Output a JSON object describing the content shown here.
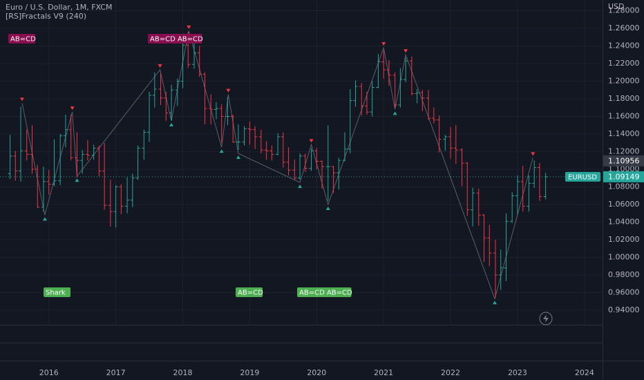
{
  "chart_data": {
    "type": "ohlc",
    "title": "Euro / U.S. Dollar, 1M, FXCM",
    "subtitle": "[RS]Fractals V9 (240)",
    "currency": "USD",
    "symbol": "EURUSD",
    "highlight_price": {
      "value": 1.10956,
      "label": "1.10956"
    },
    "up_color": "#26a69a",
    "down_color": "#f23645",
    "grid": true,
    "xlim": [
      2015.27,
      2024.27
    ],
    "xticks": [
      2016,
      2017,
      2018,
      2019,
      2020,
      2021,
      2022,
      2023,
      2024
    ],
    "ylim": [
      0.9235,
      1.2922
    ],
    "yticks": [
      {
        "value": 0.94,
        "label": "0.94000"
      },
      {
        "value": 0.96,
        "label": "0.96000"
      },
      {
        "value": 0.98,
        "label": "0.98000"
      },
      {
        "value": 1.0,
        "label": "1.00000"
      },
      {
        "value": 1.02,
        "label": "1.02000"
      },
      {
        "value": 1.04,
        "label": "1.04000"
      },
      {
        "value": 1.06,
        "label": "1.06000"
      },
      {
        "value": 1.08,
        "label": "1.08000"
      },
      {
        "value": 1.1,
        "label": "1.10000"
      },
      {
        "value": 1.12,
        "label": "1.12000"
      },
      {
        "value": 1.14,
        "label": "1.14000"
      },
      {
        "value": 1.16,
        "label": "1.16000"
      },
      {
        "value": 1.18,
        "label": "1.18000"
      },
      {
        "value": 1.2,
        "label": "1.20000"
      },
      {
        "value": 1.22,
        "label": "1.22000"
      },
      {
        "value": 1.24,
        "label": "1.24000"
      },
      {
        "value": 1.26,
        "label": "1.26000"
      },
      {
        "value": 1.28,
        "label": "1.28000"
      }
    ],
    "x": [
      2015.42,
      2015.5,
      2015.58,
      2015.67,
      2015.75,
      2015.83,
      2015.92,
      2016.0,
      2016.08,
      2016.17,
      2016.25,
      2016.33,
      2016.42,
      2016.5,
      2016.58,
      2016.67,
      2016.75,
      2016.83,
      2016.92,
      2017.0,
      2017.08,
      2017.17,
      2017.25,
      2017.33,
      2017.42,
      2017.5,
      2017.58,
      2017.67,
      2017.75,
      2017.83,
      2017.92,
      2018.0,
      2018.08,
      2018.17,
      2018.25,
      2018.33,
      2018.42,
      2018.5,
      2018.58,
      2018.67,
      2018.75,
      2018.83,
      2018.92,
      2019.0,
      2019.08,
      2019.17,
      2019.25,
      2019.33,
      2019.42,
      2019.5,
      2019.58,
      2019.67,
      2019.75,
      2019.83,
      2019.92,
      2020.0,
      2020.08,
      2020.17,
      2020.25,
      2020.33,
      2020.42,
      2020.5,
      2020.58,
      2020.67,
      2020.75,
      2020.83,
      2020.92,
      2021.0,
      2021.08,
      2021.17,
      2021.25,
      2021.33,
      2021.42,
      2021.5,
      2021.58,
      2021.67,
      2021.75,
      2021.83,
      2021.92,
      2022.0,
      2022.08,
      2022.17,
      2022.25,
      2022.33,
      2022.42,
      2022.5,
      2022.58,
      2022.67,
      2022.75,
      2022.83,
      2022.92,
      2023.0,
      2023.08,
      2023.17,
      2023.25,
      2023.33,
      2023.42
    ],
    "open": [
      1.095,
      1.115,
      1.098,
      1.121,
      1.117,
      1.1,
      1.057,
      1.086,
      1.083,
      1.087,
      1.138,
      1.145,
      1.113,
      1.11,
      1.117,
      1.116,
      1.124,
      1.098,
      1.059,
      1.052,
      1.08,
      1.058,
      1.065,
      1.09,
      1.124,
      1.142,
      1.184,
      1.191,
      1.181,
      1.164,
      1.19,
      1.2,
      1.241,
      1.219,
      1.232,
      1.208,
      1.169,
      1.168,
      1.169,
      1.16,
      1.16,
      1.131,
      1.131,
      1.146,
      1.145,
      1.137,
      1.122,
      1.121,
      1.117,
      1.137,
      1.108,
      1.099,
      1.09,
      1.115,
      1.101,
      1.121,
      1.109,
      1.103,
      1.103,
      1.096,
      1.11,
      1.123,
      1.178,
      1.194,
      1.172,
      1.165,
      1.193,
      1.222,
      1.213,
      1.207,
      1.173,
      1.202,
      1.223,
      1.186,
      1.187,
      1.181,
      1.158,
      1.156,
      1.134,
      1.137,
      1.124,
      1.122,
      1.107,
      1.054,
      1.073,
      1.048,
      1.022,
      1.005,
      0.98,
      0.988,
      1.041,
      1.07,
      1.086,
      1.058,
      1.084,
      1.102,
      1.069
    ],
    "high": [
      1.139,
      1.121,
      1.171,
      1.145,
      1.15,
      1.105,
      1.103,
      1.099,
      1.134,
      1.14,
      1.162,
      1.162,
      1.142,
      1.122,
      1.133,
      1.128,
      1.127,
      1.13,
      1.088,
      1.082,
      1.083,
      1.091,
      1.095,
      1.127,
      1.145,
      1.188,
      1.21,
      1.209,
      1.188,
      1.196,
      1.203,
      1.254,
      1.256,
      1.248,
      1.24,
      1.21,
      1.185,
      1.176,
      1.174,
      1.182,
      1.162,
      1.151,
      1.149,
      1.154,
      1.149,
      1.145,
      1.132,
      1.127,
      1.141,
      1.142,
      1.125,
      1.111,
      1.118,
      1.118,
      1.124,
      1.124,
      1.11,
      1.15,
      1.104,
      1.113,
      1.142,
      1.191,
      1.201,
      1.198,
      1.188,
      1.2,
      1.231,
      1.235,
      1.224,
      1.21,
      1.215,
      1.227,
      1.228,
      1.191,
      1.19,
      1.19,
      1.17,
      1.161,
      1.139,
      1.148,
      1.15,
      1.124,
      1.108,
      1.079,
      1.078,
      1.049,
      1.037,
      1.02,
      1.009,
      1.05,
      1.074,
      1.093,
      1.104,
      1.093,
      1.11,
      1.107,
      1.096
    ],
    "low": [
      1.089,
      1.087,
      1.086,
      1.11,
      1.095,
      1.056,
      1.052,
      1.071,
      1.081,
      1.082,
      1.125,
      1.11,
      1.091,
      1.095,
      1.11,
      1.111,
      1.092,
      1.054,
      1.035,
      1.034,
      1.049,
      1.05,
      1.057,
      1.088,
      1.111,
      1.131,
      1.17,
      1.173,
      1.155,
      1.155,
      1.172,
      1.192,
      1.215,
      1.214,
      1.205,
      1.151,
      1.151,
      1.157,
      1.13,
      1.15,
      1.13,
      1.122,
      1.127,
      1.128,
      1.123,
      1.118,
      1.111,
      1.11,
      1.116,
      1.102,
      1.093,
      1.088,
      1.088,
      1.097,
      1.098,
      1.1,
      1.078,
      1.064,
      1.073,
      1.077,
      1.109,
      1.118,
      1.171,
      1.161,
      1.162,
      1.16,
      1.192,
      1.203,
      1.195,
      1.17,
      1.17,
      1.199,
      1.184,
      1.175,
      1.166,
      1.156,
      1.152,
      1.119,
      1.121,
      1.112,
      1.106,
      1.081,
      1.047,
      1.035,
      1.036,
      0.995,
      0.99,
      0.954,
      0.963,
      0.973,
      1.039,
      1.048,
      1.052,
      1.052,
      1.079,
      1.064,
      1.066
    ],
    "close": [
      1.115,
      1.098,
      1.121,
      1.117,
      1.1,
      1.057,
      1.086,
      1.083,
      1.087,
      1.138,
      1.145,
      1.113,
      1.11,
      1.117,
      1.116,
      1.124,
      1.098,
      1.059,
      1.052,
      1.08,
      1.058,
      1.065,
      1.09,
      1.124,
      1.142,
      1.184,
      1.191,
      1.181,
      1.164,
      1.19,
      1.2,
      1.241,
      1.219,
      1.232,
      1.208,
      1.169,
      1.168,
      1.169,
      1.16,
      1.16,
      1.131,
      1.131,
      1.146,
      1.145,
      1.137,
      1.122,
      1.121,
      1.117,
      1.137,
      1.108,
      1.099,
      1.09,
      1.115,
      1.101,
      1.121,
      1.109,
      1.103,
      1.103,
      1.096,
      1.11,
      1.123,
      1.178,
      1.194,
      1.172,
      1.165,
      1.193,
      1.222,
      1.213,
      1.207,
      1.173,
      1.202,
      1.223,
      1.186,
      1.187,
      1.181,
      1.158,
      1.156,
      1.134,
      1.137,
      1.124,
      1.122,
      1.107,
      1.054,
      1.073,
      1.048,
      1.022,
      1.005,
      0.98,
      0.988,
      1.041,
      1.07,
      1.086,
      1.058,
      1.084,
      1.102,
      1.069,
      1.09149
    ],
    "zigzag": {
      "x": [
        2015.6,
        2015.94,
        2016.35,
        2016.42,
        2017.66,
        2017.83,
        2018.09,
        2018.58,
        2018.68,
        2018.83,
        2019.75,
        2019.92,
        2020.17,
        2021.0,
        2021.17,
        2021.33,
        2022.66,
        2023.23
      ],
      "values": [
        1.175,
        1.048,
        1.165,
        1.092,
        1.213,
        1.155,
        1.257,
        1.125,
        1.185,
        1.118,
        1.085,
        1.128,
        1.06,
        1.238,
        1.168,
        1.23,
        0.953,
        1.113
      ]
    },
    "annotations": [
      {
        "text": "AB=CD",
        "color": "#880e4f"
      },
      {
        "text": "AB=CD AB=CD",
        "color": "#880e4f"
      },
      {
        "text": "Shark",
        "color": "#4caf50"
      },
      {
        "text": "AB=CD",
        "color": "#4caf50"
      },
      {
        "text": "AB=CD AB=CD",
        "color": "#4caf50"
      }
    ]
  }
}
